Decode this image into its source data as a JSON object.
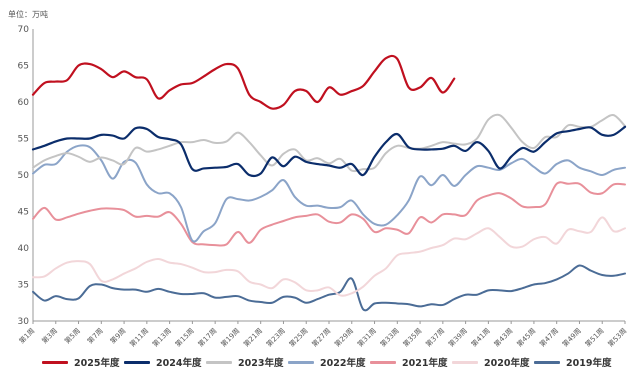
{
  "chart_data": {
    "type": "line",
    "unit_label": "单位：万吨",
    "title": "",
    "xlabel": "",
    "ylabel": "",
    "ylim": [
      30,
      70
    ],
    "yticks": [
      30,
      35,
      40,
      45,
      50,
      55,
      60,
      65,
      70
    ],
    "x_tick_labels": [
      "第1周",
      "第3周",
      "第5周",
      "第7周",
      "第9周",
      "第11周",
      "第13周",
      "第15周",
      "第17周",
      "第19周",
      "第21周",
      "第23周",
      "第25周",
      "第27周",
      "第29周",
      "第31周",
      "第33周",
      "第35周",
      "第37周",
      "第39周",
      "第41周",
      "第43周",
      "第45周",
      "第47周",
      "第49周",
      "第51周",
      "第53周"
    ],
    "grid": false,
    "legend_position": "bottom",
    "series": [
      {
        "name": "2025年度",
        "color": "#c0101f",
        "width": 2.2,
        "values": [
          61,
          62.6,
          62.8,
          63,
          65,
          65.2,
          64.5,
          63.4,
          64.2,
          63.4,
          63.1,
          60.5,
          61.6,
          62.4,
          62.6,
          63.5,
          64.5,
          65.2,
          64.6,
          61,
          60,
          59.1,
          59.6,
          61.5,
          61.5,
          60,
          62,
          61,
          61.5,
          62.2,
          64.2,
          66,
          65.9,
          62,
          62,
          63.3,
          61.3,
          63.2
        ]
      },
      {
        "name": "2024年度",
        "color": "#0b2d6b",
        "width": 2.2,
        "values": [
          53.5,
          54,
          54.6,
          55,
          55,
          55,
          55.5,
          55.4,
          55,
          56.4,
          56.3,
          55.2,
          54.9,
          54.2,
          50.8,
          50.9,
          51,
          51.1,
          51.5,
          50,
          50.2,
          52.4,
          51.2,
          52.5,
          51.8,
          51.5,
          51.3,
          51,
          51.5,
          50,
          52.5,
          54.5,
          55.6,
          53.8,
          53.5,
          53.5,
          53.6,
          54,
          53.3,
          54.5,
          53.3,
          50.9,
          52.5,
          53.7,
          53.2,
          54.5,
          55.7,
          56,
          56.3,
          56.5,
          55.5,
          55.5,
          56.6
        ]
      },
      {
        "name": "2023年度",
        "color": "#c4c4c4",
        "width": 2,
        "values": [
          51,
          52,
          52.6,
          53,
          52.5,
          51.8,
          52.4,
          52,
          51.5,
          53.7,
          53.2,
          53.5,
          54,
          54.5,
          54.5,
          54.8,
          54.4,
          54.6,
          55.8,
          54.5,
          52.7,
          51.3,
          52.9,
          53.5,
          52,
          52.3,
          51.6,
          52.2,
          50.6,
          50.8,
          51,
          53,
          54,
          53.7,
          53.6,
          54,
          54.5,
          54.3,
          54.2,
          55,
          57.6,
          58.2,
          56.5,
          54.5,
          53.7,
          55.2,
          55.2,
          56.8,
          56.6,
          56.6,
          57.5,
          58.2,
          56.7
        ]
      },
      {
        "name": "2022年度",
        "color": "#8ba4c8",
        "width": 2,
        "values": [
          50.2,
          51.4,
          51.5,
          53.2,
          54,
          53.8,
          52,
          49.5,
          51.8,
          51.7,
          48.7,
          47.5,
          47.5,
          45.6,
          41,
          42.3,
          43.4,
          46.7,
          46.7,
          46.5,
          47,
          47.9,
          49.3,
          47,
          45.8,
          45.8,
          45.5,
          45.6,
          46.5,
          44.6,
          43.3,
          43.2,
          44.5,
          46.5,
          49.8,
          48.6,
          50,
          48.5,
          50,
          51.2,
          51,
          50.7,
          51.6,
          52.2,
          51.1,
          50.2,
          51.5,
          52,
          51,
          50.5,
          50,
          50.7,
          51
        ]
      },
      {
        "name": "2021年度",
        "color": "#e8909a",
        "width": 2,
        "values": [
          44,
          45.5,
          43.9,
          44.2,
          44.7,
          45.1,
          45.4,
          45.4,
          45.2,
          44.3,
          44.4,
          44.3,
          44.9,
          43.3,
          40.8,
          40.5,
          40.4,
          40.5,
          42.2,
          40.7,
          42.5,
          43.2,
          43.7,
          44.2,
          44.4,
          44.6,
          43.6,
          43.5,
          44.6,
          44,
          42.2,
          42.7,
          42.5,
          42,
          44.2,
          43.5,
          44.6,
          44.6,
          44.5,
          46.5,
          47.2,
          47.5,
          46.8,
          45.7,
          45.6,
          46,
          48.8,
          48.8,
          48.8,
          47.6,
          47.5,
          48.7,
          48.7
        ]
      },
      {
        "name": "2020年度",
        "color": "#f2d6d9",
        "width": 2,
        "values": [
          36,
          36.1,
          37.2,
          38,
          38.2,
          37.8,
          35.5,
          35.7,
          36.5,
          37.2,
          38.1,
          38.5,
          38,
          37.8,
          37.3,
          36.7,
          36.7,
          37,
          36.8,
          35.4,
          35,
          34.5,
          35.7,
          35.3,
          34.2,
          34.2,
          34.6,
          33.5,
          33.8,
          34.7,
          36.2,
          37.2,
          39,
          39.3,
          39.5,
          40,
          40.4,
          41.3,
          41.2,
          42,
          42.7,
          41.5,
          40.2,
          40.2,
          41.2,
          41.5,
          40.6,
          42.5,
          42.3,
          42.2,
          44.2,
          42.3,
          42.7
        ]
      },
      {
        "name": "2019年度",
        "color": "#4b6c96",
        "width": 2,
        "values": [
          34,
          32.8,
          33.4,
          33,
          33.1,
          34.8,
          35,
          34.5,
          34.3,
          34.3,
          34,
          34.4,
          34,
          33.7,
          33.7,
          33.8,
          33.2,
          33.3,
          33.4,
          32.8,
          32.6,
          32.5,
          33.3,
          33.2,
          32.5,
          33,
          33.6,
          34,
          35.8,
          31.6,
          32.4,
          32.5,
          32.4,
          32.3,
          32,
          32.3,
          32.2,
          33,
          33.6,
          33.6,
          34.2,
          34.2,
          34.1,
          34.5,
          35,
          35.2,
          35.7,
          36.5,
          37.6,
          36.9,
          36.3,
          36.2,
          36.5
        ]
      }
    ]
  }
}
